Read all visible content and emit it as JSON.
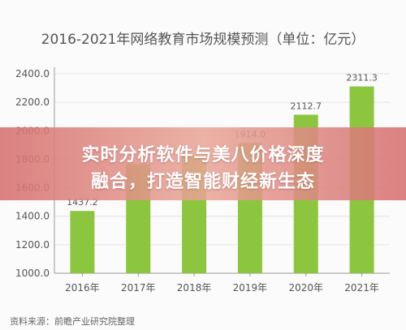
{
  "chart_data": {
    "type": "bar",
    "title": "2016-2021年网络教育市场规模预测（单位：亿元）",
    "categories": [
      "2016年",
      "2017年",
      "2018年",
      "2019年",
      "2020年",
      "2021年"
    ],
    "values": [
      1437.2,
      1765,
      1829,
      1914.0,
      2112.7,
      2311.3
    ],
    "data_labels": [
      "1437.2",
      "",
      "",
      "1914.0",
      "2112.7",
      "2311.3"
    ],
    "yticks": [
      "2400.0",
      "2200.0",
      "2000.0",
      "1800.0",
      "1600.0",
      "1400.0",
      "1200.0",
      "1000.0"
    ],
    "ylim": [
      1000,
      2400
    ],
    "grid": true,
    "bar_color": "#8cc63f",
    "xlabel": "",
    "ylabel": ""
  },
  "source": "资料来源：前瞻产业研究院整理",
  "banner": {
    "line1": "实时分析软件与美八价格深度",
    "line2": "融合，打造智能财经新生态"
  }
}
